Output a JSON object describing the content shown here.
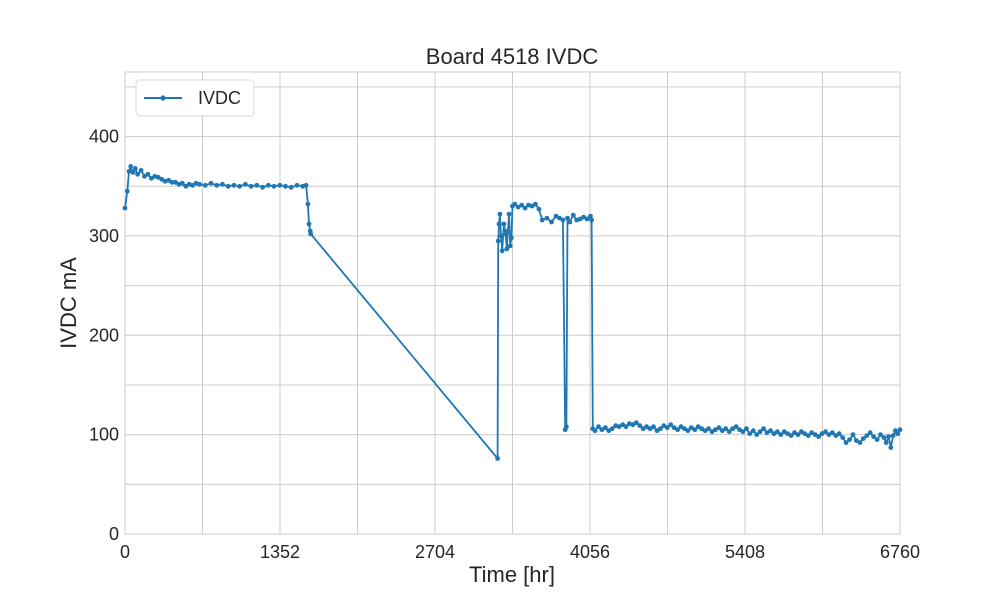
{
  "chart_data": {
    "type": "line",
    "title": "Board 4518 IVDC",
    "xlabel": "Time [hr]",
    "ylabel": "IVDC mA",
    "xlim": [
      0,
      6760
    ],
    "ylim": [
      0,
      465
    ],
    "x_ticks": [
      0,
      1352,
      2704,
      4056,
      5408,
      6760
    ],
    "y_ticks": [
      0,
      100,
      200,
      300,
      400
    ],
    "grid": true,
    "legend_position": "top-left",
    "series": [
      {
        "name": "IVDC",
        "color": "#1f77b4",
        "marker": "dot",
        "points": [
          [
            0,
            328
          ],
          [
            20,
            345
          ],
          [
            35,
            365
          ],
          [
            50,
            370
          ],
          [
            70,
            364
          ],
          [
            90,
            368
          ],
          [
            110,
            362
          ],
          [
            140,
            366
          ],
          [
            170,
            360
          ],
          [
            200,
            362
          ],
          [
            230,
            358
          ],
          [
            260,
            360
          ],
          [
            290,
            359
          ],
          [
            320,
            357
          ],
          [
            350,
            355
          ],
          [
            380,
            356
          ],
          [
            410,
            354
          ],
          [
            440,
            354
          ],
          [
            470,
            352
          ],
          [
            500,
            353
          ],
          [
            530,
            350
          ],
          [
            560,
            352
          ],
          [
            590,
            351
          ],
          [
            620,
            353
          ],
          [
            650,
            352
          ],
          [
            700,
            351
          ],
          [
            750,
            353
          ],
          [
            800,
            351
          ],
          [
            850,
            352
          ],
          [
            900,
            350
          ],
          [
            950,
            351
          ],
          [
            1000,
            350
          ],
          [
            1050,
            352
          ],
          [
            1100,
            350
          ],
          [
            1150,
            351
          ],
          [
            1200,
            349
          ],
          [
            1250,
            351
          ],
          [
            1300,
            350
          ],
          [
            1350,
            351
          ],
          [
            1400,
            350
          ],
          [
            1450,
            349
          ],
          [
            1500,
            351
          ],
          [
            1550,
            350
          ],
          [
            1580,
            351
          ],
          [
            1595,
            332
          ],
          [
            1605,
            312
          ],
          [
            1615,
            305
          ],
          [
            1620,
            302
          ],
          [
            3250,
            76
          ],
          [
            3255,
            295
          ],
          [
            3262,
            312
          ],
          [
            3270,
            322
          ],
          [
            3280,
            300
          ],
          [
            3290,
            285
          ],
          [
            3305,
            312
          ],
          [
            3320,
            302
          ],
          [
            3330,
            287
          ],
          [
            3340,
            305
          ],
          [
            3350,
            322
          ],
          [
            3360,
            290
          ],
          [
            3370,
            298
          ],
          [
            3380,
            330
          ],
          [
            3400,
            332
          ],
          [
            3430,
            329
          ],
          [
            3460,
            331
          ],
          [
            3490,
            328
          ],
          [
            3520,
            331
          ],
          [
            3550,
            330
          ],
          [
            3580,
            332
          ],
          [
            3610,
            327
          ],
          [
            3640,
            316
          ],
          [
            3680,
            318
          ],
          [
            3720,
            314
          ],
          [
            3760,
            320
          ],
          [
            3790,
            318
          ],
          [
            3820,
            316
          ],
          [
            3840,
            105
          ],
          [
            3850,
            108
          ],
          [
            3860,
            318
          ],
          [
            3880,
            314
          ],
          [
            3910,
            321
          ],
          [
            3940,
            316
          ],
          [
            3970,
            317
          ],
          [
            4000,
            319
          ],
          [
            4030,
            317
          ],
          [
            4060,
            320
          ],
          [
            4070,
            316
          ],
          [
            4080,
            106
          ],
          [
            4100,
            104
          ],
          [
            4130,
            108
          ],
          [
            4160,
            105
          ],
          [
            4190,
            107
          ],
          [
            4220,
            104
          ],
          [
            4250,
            106
          ],
          [
            4280,
            109
          ],
          [
            4310,
            108
          ],
          [
            4340,
            110
          ],
          [
            4370,
            108
          ],
          [
            4400,
            111
          ],
          [
            4430,
            110
          ],
          [
            4460,
            112
          ],
          [
            4490,
            109
          ],
          [
            4520,
            106
          ],
          [
            4550,
            108
          ],
          [
            4580,
            106
          ],
          [
            4610,
            108
          ],
          [
            4640,
            104
          ],
          [
            4670,
            106
          ],
          [
            4700,
            109
          ],
          [
            4730,
            107
          ],
          [
            4760,
            110
          ],
          [
            4790,
            107
          ],
          [
            4820,
            105
          ],
          [
            4850,
            108
          ],
          [
            4880,
            106
          ],
          [
            4910,
            104
          ],
          [
            4940,
            107
          ],
          [
            4970,
            105
          ],
          [
            5000,
            108
          ],
          [
            5030,
            106
          ],
          [
            5060,
            104
          ],
          [
            5090,
            106
          ],
          [
            5120,
            103
          ],
          [
            5150,
            105
          ],
          [
            5180,
            107
          ],
          [
            5210,
            104
          ],
          [
            5240,
            106
          ],
          [
            5270,
            103
          ],
          [
            5300,
            106
          ],
          [
            5330,
            108
          ],
          [
            5360,
            105
          ],
          [
            5390,
            103
          ],
          [
            5420,
            106
          ],
          [
            5450,
            101
          ],
          [
            5480,
            104
          ],
          [
            5510,
            100
          ],
          [
            5540,
            103
          ],
          [
            5570,
            106
          ],
          [
            5600,
            102
          ],
          [
            5630,
            104
          ],
          [
            5660,
            101
          ],
          [
            5690,
            103
          ],
          [
            5720,
            100
          ],
          [
            5750,
            103
          ],
          [
            5780,
            101
          ],
          [
            5810,
            99
          ],
          [
            5840,
            102
          ],
          [
            5870,
            100
          ],
          [
            5900,
            103
          ],
          [
            5930,
            101
          ],
          [
            5960,
            99
          ],
          [
            5990,
            102
          ],
          [
            6020,
            100
          ],
          [
            6050,
            98
          ],
          [
            6080,
            101
          ],
          [
            6110,
            103
          ],
          [
            6140,
            100
          ],
          [
            6170,
            102
          ],
          [
            6200,
            99
          ],
          [
            6230,
            101
          ],
          [
            6260,
            97
          ],
          [
            6290,
            92
          ],
          [
            6320,
            95
          ],
          [
            6350,
            100
          ],
          [
            6380,
            94
          ],
          [
            6410,
            92
          ],
          [
            6440,
            96
          ],
          [
            6470,
            99
          ],
          [
            6500,
            102
          ],
          [
            6530,
            98
          ],
          [
            6560,
            95
          ],
          [
            6590,
            100
          ],
          [
            6620,
            97
          ],
          [
            6640,
            92
          ],
          [
            6660,
            98
          ],
          [
            6680,
            87
          ],
          [
            6700,
            99
          ],
          [
            6720,
            104
          ],
          [
            6740,
            101
          ],
          [
            6760,
            105
          ]
        ]
      }
    ]
  }
}
